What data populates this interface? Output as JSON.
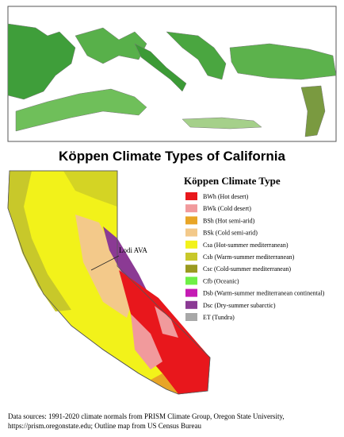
{
  "title": "Köppen Climate Types of California",
  "legend": {
    "title": "Köppen Climate Type",
    "items": [
      {
        "label": "BWh (Hot desert)",
        "color": "#e8171c"
      },
      {
        "label": "BWk (Cold desert)",
        "color": "#f19a9c"
      },
      {
        "label": "BSh (Hot semi-arid)",
        "color": "#e8a526"
      },
      {
        "label": "BSk (Cold semi-arid)",
        "color": "#f3c98a"
      },
      {
        "label": "Csa (Hot-summer mediterranean)",
        "color": "#f2f21a"
      },
      {
        "label": "Csb (Warm-summer mediterranean)",
        "color": "#c8c82a"
      },
      {
        "label": "Csc (Cold-summer mediterranean)",
        "color": "#9a9a20"
      },
      {
        "label": "Cfb (Oceanic)",
        "color": "#6ef046"
      },
      {
        "label": "Dsb (Warm-summer mediterranean continental)",
        "color": "#c51bb4"
      },
      {
        "label": "Dsc (Dry-summer subarctic)",
        "color": "#8b3a94"
      },
      {
        "label": "ET (Tundra)",
        "color": "#a8a8a8"
      }
    ]
  },
  "annotation": "Lodi AVA",
  "source": [
    "Data sources: 1991-2020 climate normals from PRISM Climate Group, Oregon State University,",
    "https://prism.oregonstate.edu; Outline map from US Census Bureau"
  ]
}
